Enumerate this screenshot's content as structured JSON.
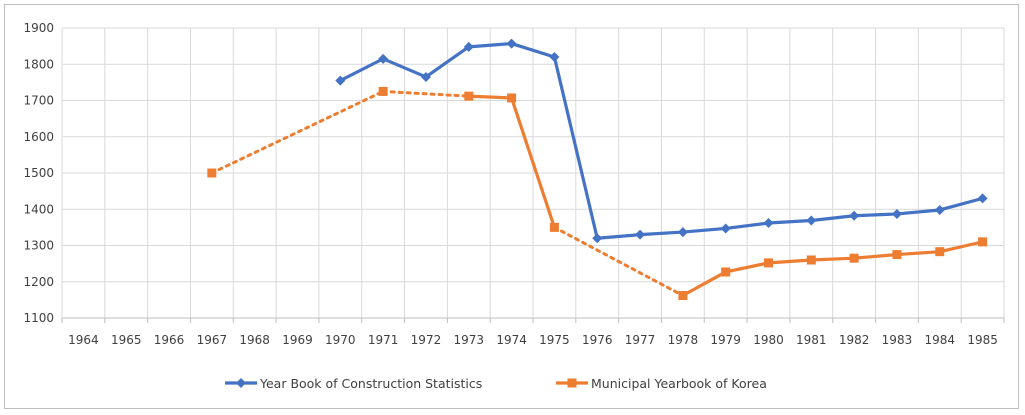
{
  "chart_data": {
    "type": "line",
    "title": "",
    "xlabel": "",
    "ylabel": "",
    "categories": [
      "1964",
      "1965",
      "1966",
      "1967",
      "1968",
      "1969",
      "1970",
      "1971",
      "1972",
      "1973",
      "1974",
      "1975",
      "1976",
      "1977",
      "1978",
      "1979",
      "1980",
      "1981",
      "1982",
      "1983",
      "1984",
      "1985"
    ],
    "ylim": [
      1100,
      1900
    ],
    "yticks": [
      1100,
      1200,
      1300,
      1400,
      1500,
      1600,
      1700,
      1800,
      1900
    ],
    "grid": true,
    "legend_position": "bottom",
    "series": [
      {
        "name": "Year Book of Construction Statistics",
        "color": "#4472c4",
        "marker": "diamond",
        "points": [
          {
            "x": 6.5,
            "y": 1755
          },
          {
            "x": 7.5,
            "y": 1815
          },
          {
            "x": 8.5,
            "y": 1765
          },
          {
            "x": 9.5,
            "y": 1848
          },
          {
            "x": 10.5,
            "y": 1857
          },
          {
            "x": 11.5,
            "y": 1820
          },
          {
            "x": 12.5,
            "y": 1320
          },
          {
            "x": 13.5,
            "y": 1330
          },
          {
            "x": 14.5,
            "y": 1337
          },
          {
            "x": 15.5,
            "y": 1347
          },
          {
            "x": 16.5,
            "y": 1362
          },
          {
            "x": 17.5,
            "y": 1369
          },
          {
            "x": 18.5,
            "y": 1382
          },
          {
            "x": 19.5,
            "y": 1387
          },
          {
            "x": 20.5,
            "y": 1398
          },
          {
            "x": 21.5,
            "y": 1430
          }
        ],
        "segments": [
          {
            "from": 0,
            "to": 15,
            "style": "solid"
          }
        ]
      },
      {
        "name": "Municipal Yearbook of Korea",
        "color": "#ed7d31",
        "marker": "square",
        "points": [
          {
            "x": 3.5,
            "y": 1500
          },
          {
            "x": 7.5,
            "y": 1725
          },
          {
            "x": 9.5,
            "y": 1712
          },
          {
            "x": 10.5,
            "y": 1707
          },
          {
            "x": 11.5,
            "y": 1350
          },
          {
            "x": 14.5,
            "y": 1162
          },
          {
            "x": 15.5,
            "y": 1227
          },
          {
            "x": 16.5,
            "y": 1252
          },
          {
            "x": 17.5,
            "y": 1260
          },
          {
            "x": 18.5,
            "y": 1265
          },
          {
            "x": 19.5,
            "y": 1275
          },
          {
            "x": 20.5,
            "y": 1283
          },
          {
            "x": 21.5,
            "y": 1310
          }
        ],
        "segments": [
          {
            "from": 0,
            "to": 1,
            "style": "dotted"
          },
          {
            "from": 1,
            "to": 2,
            "style": "dotted"
          },
          {
            "from": 2,
            "to": 4,
            "style": "solid"
          },
          {
            "from": 4,
            "to": 5,
            "style": "dotted"
          },
          {
            "from": 5,
            "to": 12,
            "style": "solid"
          }
        ]
      }
    ]
  }
}
